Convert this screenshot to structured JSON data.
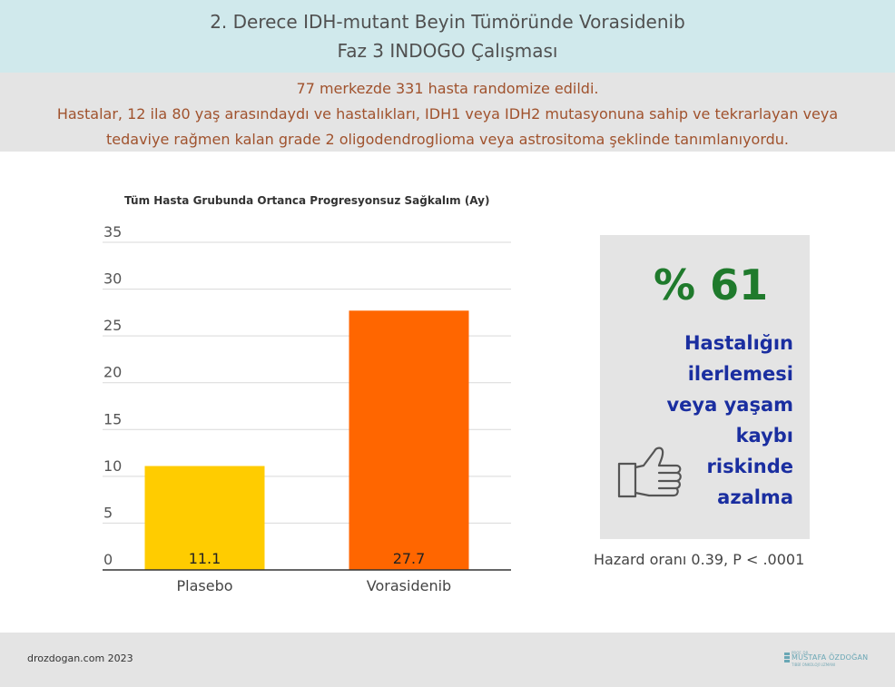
{
  "header": {
    "title_line1": "2. Derece IDH-mutant Beyin Tümöründe Vorasidenib",
    "title_line2": "Faz 3 INDOGO Çalışması"
  },
  "info": {
    "line1": "77 merkezde 331 hasta randomize edildi.",
    "line2": "Hastalar, 12 ila 80 yaş arasındaydı ve hastalıkları, IDH1 veya IDH2 mutasyonuna sahip ve tekrarlayan veya",
    "line3": "tedaviye rağmen kalan grade 2 oligodendroglioma veya astrositoma şeklinde tanımlanıyordu."
  },
  "chart_data": {
    "type": "bar",
    "title": "Tüm Hasta Grubunda Ortanca Progresyonsuz Sağkalım (Ay)",
    "categories": [
      "Plasebo",
      "Vorasidenib"
    ],
    "values": [
      11.1,
      27.7
    ],
    "value_labels": [
      "11.1",
      "27.7"
    ],
    "ylim": [
      0,
      35
    ],
    "yticks": [
      0,
      5,
      10,
      15,
      20,
      25,
      30,
      35
    ],
    "grid": true,
    "bar_colors": [
      "#ffcc00",
      "#ff6600"
    ]
  },
  "stat": {
    "percent": "% 61",
    "desc_lines": [
      "Hastalığın",
      "ilerlemesi",
      "veya yaşam",
      "kaybı",
      "riskinde",
      "azalma"
    ],
    "icon": "thumbs-up-icon",
    "hazard": "Hazard oranı 0.39, P < .0001"
  },
  "footer": {
    "site": "drozdogan.com 2023",
    "logo_small": "PROF. DR.",
    "logo_name": "MUSTAFA ÖZDOĞAN",
    "logo_sub": "TIBBİ ONKOLOJİ UZMANI"
  },
  "colors": {
    "title_bg": "#d0e9ec",
    "info_bg": "#e4e4e4",
    "info_text": "#a0522d",
    "percent": "#1f7a2c",
    "desc": "#1a2ea0"
  }
}
